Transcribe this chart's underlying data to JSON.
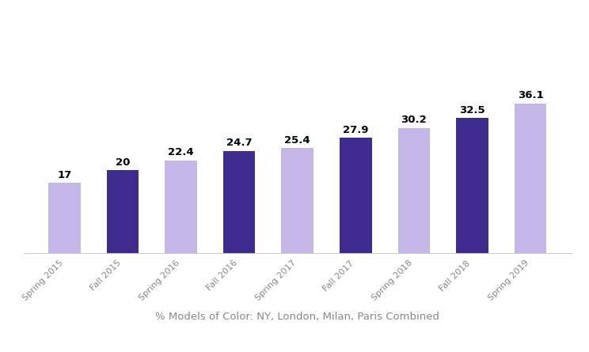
{
  "categories": [
    "Spring 2015",
    "Fall 2015",
    "Spring 2016",
    "Fall 2016",
    "Spring 2017",
    "Fall 2017",
    "Spring 2018",
    "Fall 2018",
    "Spring 2019"
  ],
  "values": [
    17,
    20,
    22.4,
    24.7,
    25.4,
    27.9,
    30.2,
    32.5,
    36.1
  ],
  "bar_colors": [
    "#c5b8e8",
    "#3d2b8e",
    "#c5b8e8",
    "#3d2b8e",
    "#c5b8e8",
    "#3d2b8e",
    "#c5b8e8",
    "#3d2b8e",
    "#c5b8e8"
  ],
  "xlabel": "% Models of Color: NY, London, Milan, Paris Combined",
  "xlabel_fontsize": 9.5,
  "value_fontsize": 9.5,
  "tick_fontsize": 8,
  "background_color": "#ffffff",
  "ylim": [
    0,
    55
  ],
  "bar_width": 0.55
}
